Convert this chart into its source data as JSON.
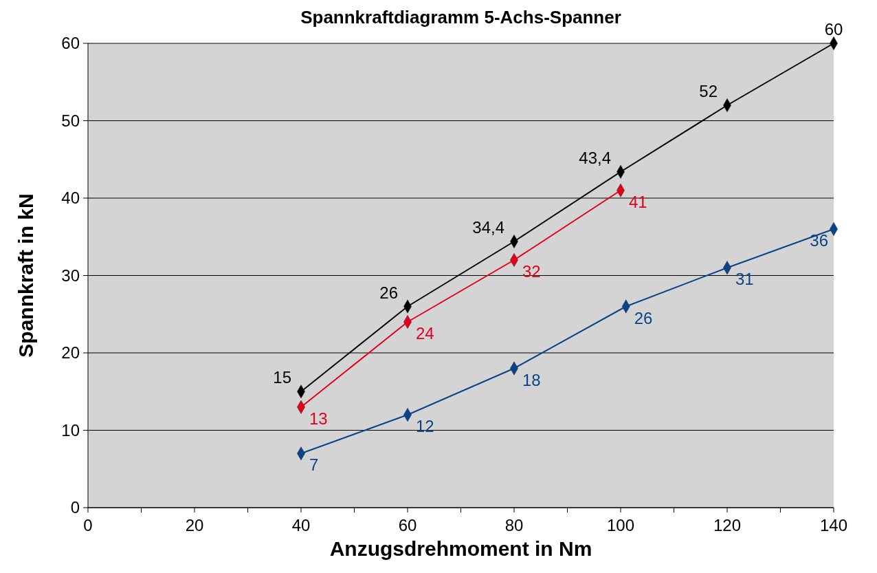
{
  "chart_data": {
    "type": "line",
    "title": "Spannkraftdiagramm 5-Achs-Spanner",
    "xlabel": "Anzugsdrehmoment in Nm",
    "ylabel": "Spannkraft in kN",
    "xlim": [
      0,
      140
    ],
    "ylim": [
      0,
      60
    ],
    "xticks": [
      0,
      {
        "value": 10,
        "label": null
      },
      20,
      {
        "value": 30,
        "label": null
      },
      40,
      {
        "value": 50,
        "label": null
      },
      60,
      {
        "value": 70,
        "label": null
      },
      80,
      {
        "value": 90,
        "label": null
      },
      100,
      {
        "value": 110,
        "label": null
      },
      120,
      {
        "value": 130,
        "label": null
      },
      140
    ],
    "yticks": [
      0,
      10,
      20,
      30,
      40,
      50,
      60
    ],
    "grid": "y",
    "marker": "diamond",
    "line_style": "solid",
    "series": [
      {
        "color": "#000000",
        "x": [
          40,
          60,
          80,
          100,
          120,
          140
        ],
        "values": [
          15,
          26,
          34.4,
          43.4,
          52,
          60
        ],
        "value_labels": [
          "15",
          "26",
          "34,4",
          "43,4",
          "52",
          "60"
        ]
      },
      {
        "color": "#e2001a",
        "x": [
          40,
          60,
          80,
          100
        ],
        "values": [
          13,
          24,
          32,
          41
        ],
        "value_labels": [
          "13",
          "24",
          "32",
          "41"
        ]
      },
      {
        "color": "#0a4388",
        "x": [
          40,
          60,
          80,
          101,
          120,
          140
        ],
        "values": [
          7,
          12,
          18,
          26,
          31,
          36
        ],
        "value_labels": [
          "7",
          "12",
          "18",
          "26",
          "31",
          "36"
        ]
      }
    ]
  }
}
